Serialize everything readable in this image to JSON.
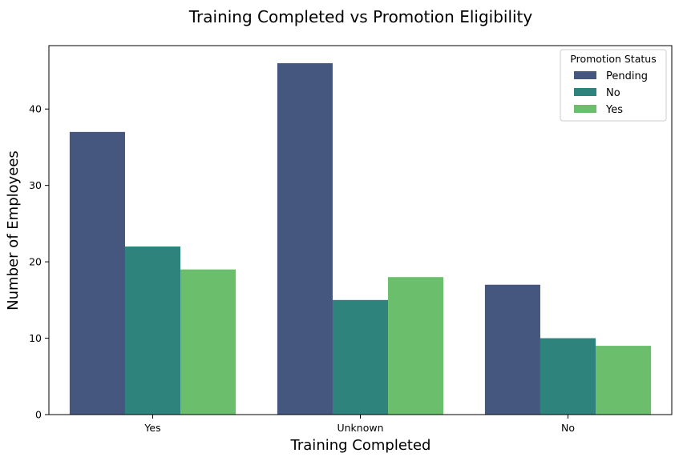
{
  "chart_data": {
    "type": "bar",
    "title": "Training Completed vs Promotion Eligibility",
    "xlabel": "Training Completed",
    "ylabel": "Number of Employees",
    "categories": [
      "Yes",
      "Unknown",
      "No"
    ],
    "series": [
      {
        "name": "Pending",
        "values": [
          37,
          46,
          17
        ],
        "color": "#45577f"
      },
      {
        "name": "No",
        "values": [
          22,
          15,
          10
        ],
        "color": "#2e837c"
      },
      {
        "name": "Yes",
        "values": [
          19,
          18,
          9
        ],
        "color": "#6abe6c"
      }
    ],
    "ylim": [
      0,
      48.3
    ],
    "yticks": [
      0,
      10,
      20,
      30,
      40
    ],
    "yticks_labels": [
      "0",
      "10",
      "20",
      "30",
      "40"
    ],
    "legend": {
      "title": "Promotion Status",
      "placement": "top-right"
    },
    "grid": false
  }
}
